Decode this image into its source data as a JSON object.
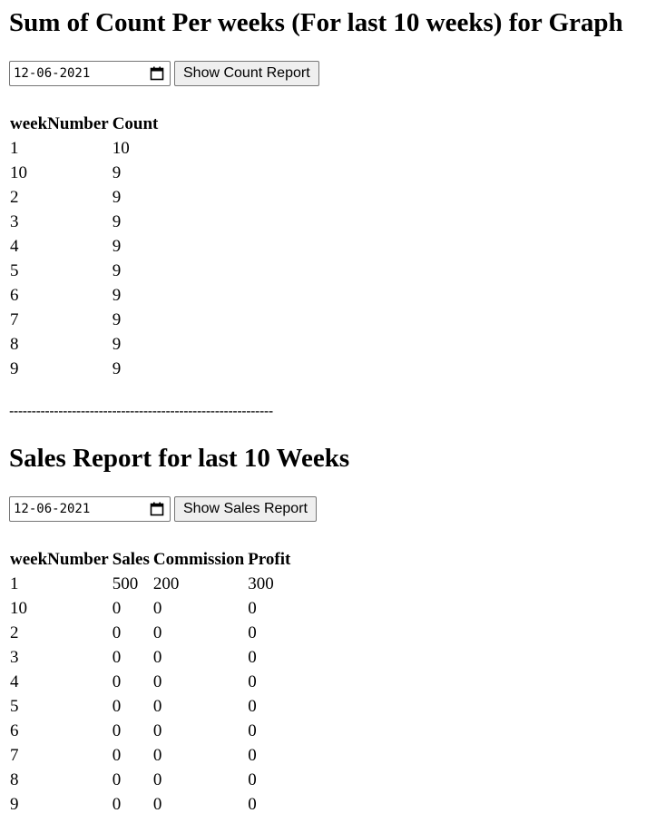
{
  "count_section": {
    "title": "Sum of Count Per weeks (For last 10 weeks) for Graph",
    "date_value": "12-06-2021",
    "button_label": "Show Count Report",
    "columns": [
      "weekNumber",
      "Count"
    ],
    "rows": [
      [
        "1",
        "10"
      ],
      [
        "10",
        "9"
      ],
      [
        "2",
        "9"
      ],
      [
        "3",
        "9"
      ],
      [
        "4",
        "9"
      ],
      [
        "5",
        "9"
      ],
      [
        "6",
        "9"
      ],
      [
        "7",
        "9"
      ],
      [
        "8",
        "9"
      ],
      [
        "9",
        "9"
      ]
    ]
  },
  "divider": "-----------------------------------------------------------",
  "sales_section": {
    "title": "Sales Report for last 10 Weeks",
    "date_value": "12-06-2021",
    "button_label": "Show Sales Report",
    "columns": [
      "weekNumber",
      "Sales",
      "Commission",
      "Profit"
    ],
    "rows": [
      [
        "1",
        "500",
        "200",
        "300"
      ],
      [
        "10",
        "0",
        "0",
        "0"
      ],
      [
        "2",
        "0",
        "0",
        "0"
      ],
      [
        "3",
        "0",
        "0",
        "0"
      ],
      [
        "4",
        "0",
        "0",
        "0"
      ],
      [
        "5",
        "0",
        "0",
        "0"
      ],
      [
        "6",
        "0",
        "0",
        "0"
      ],
      [
        "7",
        "0",
        "0",
        "0"
      ],
      [
        "8",
        "0",
        "0",
        "0"
      ],
      [
        "9",
        "0",
        "0",
        "0"
      ]
    ]
  }
}
